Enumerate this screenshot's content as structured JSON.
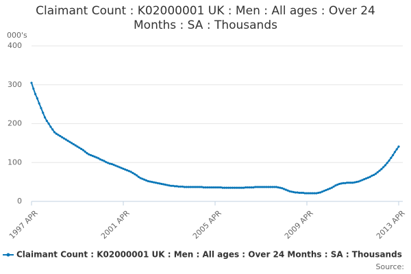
{
  "chart_data": {
    "type": "line",
    "title": "Claimant Count : K02000001 UK : Men : All ages : Over 24 Months : SA : Thousands",
    "y_label": "000's",
    "source": "Source:",
    "categories": [
      "1997 APR",
      null,
      null,
      null,
      null,
      null,
      null,
      null,
      null,
      null,
      null,
      null,
      null,
      null,
      null,
      null,
      null,
      null,
      null,
      null,
      null,
      null,
      null,
      null,
      null,
      null,
      null,
      null,
      null,
      null,
      null,
      null,
      null,
      null,
      null,
      null,
      null,
      null,
      null,
      null,
      null,
      null,
      null,
      null,
      null,
      null,
      null,
      null,
      "2001 APR",
      null,
      null,
      null,
      null,
      null,
      null,
      null,
      null,
      null,
      null,
      null,
      null,
      null,
      null,
      null,
      null,
      null,
      null,
      null,
      null,
      null,
      null,
      null,
      null,
      null,
      null,
      null,
      null,
      null,
      null,
      null,
      null,
      null,
      null,
      null,
      null,
      null,
      null,
      null,
      null,
      null,
      null,
      null,
      null,
      null,
      null,
      null,
      "2005 APR",
      null,
      null,
      null,
      null,
      null,
      null,
      null,
      null,
      null,
      null,
      null,
      null,
      null,
      null,
      null,
      null,
      null,
      null,
      null,
      null,
      null,
      null,
      null,
      null,
      null,
      null,
      null,
      null,
      null,
      null,
      null,
      null,
      null,
      null,
      null,
      null,
      null,
      null,
      null,
      null,
      null,
      null,
      null,
      null,
      null,
      null,
      null,
      "2009 APR",
      null,
      null,
      null,
      null,
      null,
      null,
      null,
      null,
      null,
      null,
      null,
      null,
      null,
      null,
      null,
      null,
      null,
      null,
      null,
      null,
      null,
      null,
      null,
      null,
      null,
      null,
      null,
      null,
      null,
      null,
      null,
      null,
      null,
      null,
      null,
      null,
      null,
      null,
      null,
      null,
      null,
      null,
      null,
      null,
      null,
      null,
      null,
      "2013 APR"
    ],
    "series": [
      {
        "name": "Claimant Count : K02000001 UK : Men : All ages : Over 24 Months : SA : Thousands",
        "color": "#0a77b8",
        "values": [
          305,
          290,
          276,
          265,
          252,
          240,
          228,
          216,
          207,
          200,
          192,
          185,
          178,
          174,
          171,
          168,
          165,
          162,
          159,
          156,
          153,
          150,
          147,
          144,
          141,
          138,
          135,
          132,
          128,
          124,
          121,
          119,
          117,
          115,
          113,
          111,
          108,
          106,
          104,
          101,
          99,
          97,
          96,
          94,
          92,
          90,
          88,
          86,
          84,
          82,
          80,
          78,
          76,
          73,
          70,
          67,
          63,
          60,
          58,
          56,
          54,
          52,
          51,
          50,
          49,
          48,
          47,
          46,
          45,
          44,
          43,
          42,
          41,
          40,
          40,
          39,
          39,
          38,
          38,
          38,
          37,
          37,
          37,
          37,
          37,
          37,
          37,
          37,
          37,
          37,
          36,
          36,
          36,
          36,
          36,
          36,
          36,
          36,
          36,
          36,
          35,
          35,
          35,
          35,
          35,
          35,
          35,
          35,
          35,
          35,
          35,
          35,
          36,
          36,
          36,
          36,
          36,
          37,
          37,
          37,
          37,
          37,
          37,
          37,
          37,
          37,
          37,
          37,
          37,
          36,
          35,
          34,
          32,
          30,
          28,
          26,
          25,
          24,
          23,
          23,
          22,
          22,
          22,
          21,
          21,
          21,
          21,
          21,
          21,
          21,
          22,
          23,
          25,
          27,
          29,
          31,
          33,
          35,
          38,
          41,
          43,
          45,
          46,
          47,
          47,
          48,
          48,
          48,
          48,
          49,
          50,
          51,
          53,
          55,
          57,
          59,
          61,
          63,
          66,
          68,
          71,
          75,
          79,
          83,
          88,
          93,
          99,
          105,
          112,
          119,
          127,
          134,
          141
        ]
      }
    ],
    "ylim": [
      0,
      400
    ],
    "yticks": [
      0,
      100,
      200,
      300,
      400
    ],
    "grid": true,
    "legend": "bottom"
  }
}
